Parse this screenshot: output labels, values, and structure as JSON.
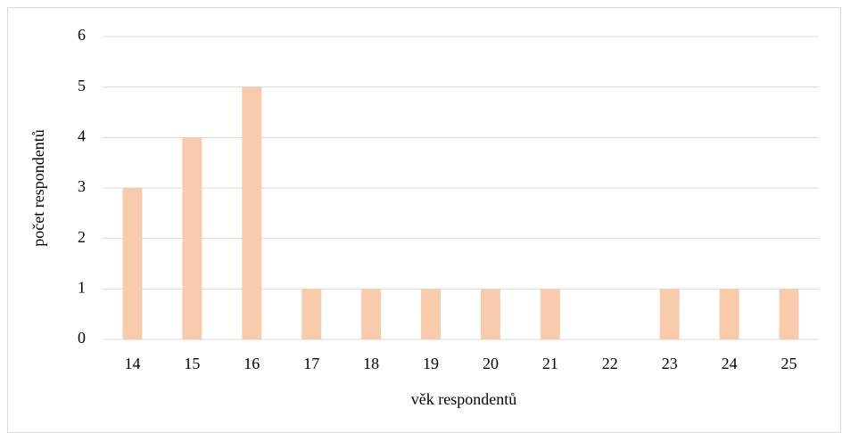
{
  "chart_data": {
    "type": "bar",
    "categories": [
      "14",
      "15",
      "16",
      "17",
      "18",
      "19",
      "20",
      "21",
      "22",
      "23",
      "24",
      "25"
    ],
    "values": [
      3,
      4,
      5,
      1,
      1,
      1,
      1,
      1,
      0,
      1,
      1,
      1
    ],
    "color": "#f8cbad",
    "x_label": "věk respondentů",
    "y_label": "počet respondentů",
    "ylim": [
      0,
      6
    ],
    "yticks": [
      0,
      1,
      2,
      3,
      4,
      5,
      6
    ],
    "grid": true
  }
}
